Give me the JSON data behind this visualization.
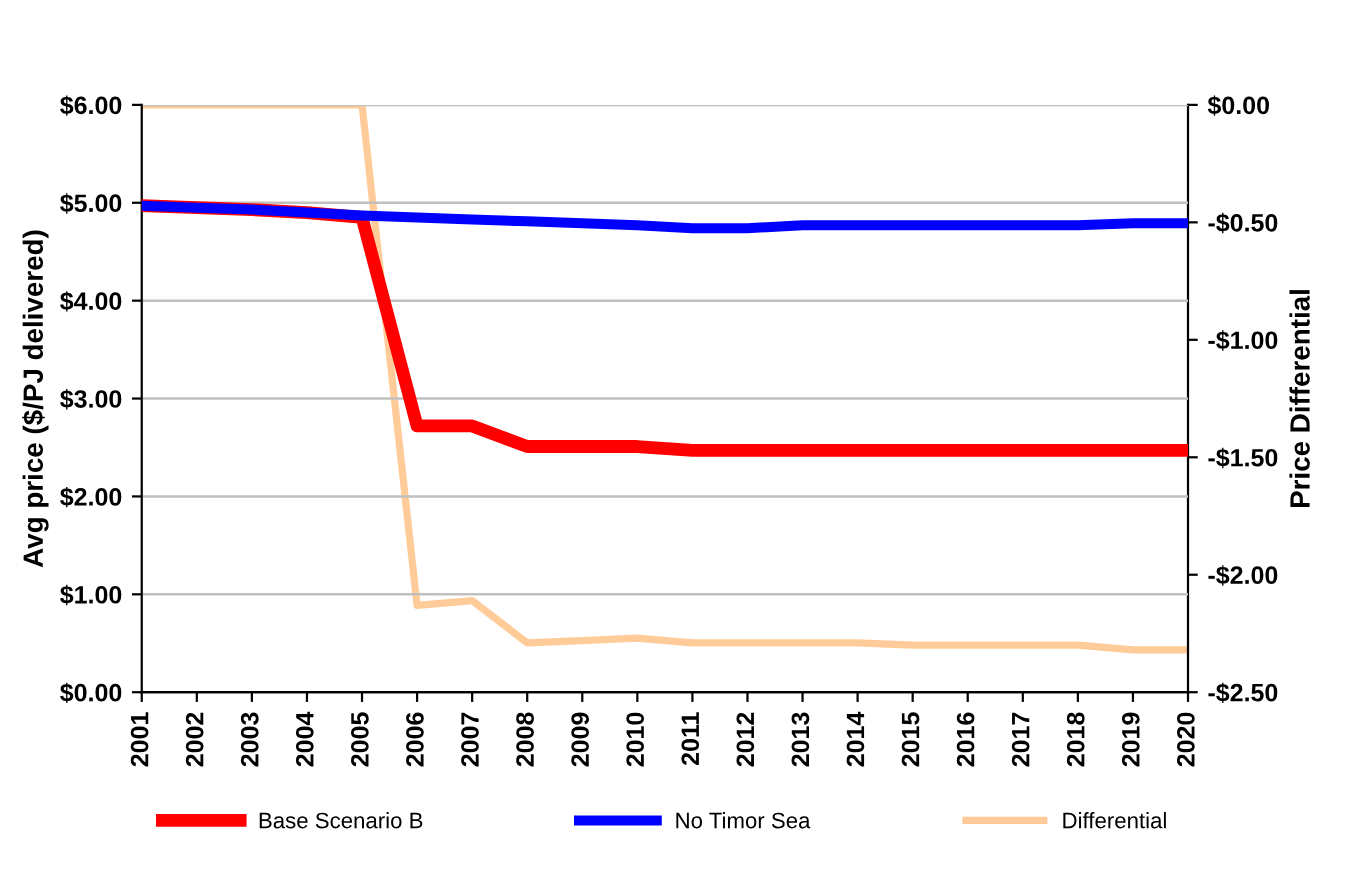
{
  "chart_data": {
    "type": "line",
    "ylabel": "Avg price ($/PJ delivered)",
    "y2label": "Price Differential",
    "categories": [
      "2001",
      "2002",
      "2003",
      "2004",
      "2005",
      "2006",
      "2007",
      "2008",
      "2009",
      "2010",
      "2011",
      "2012",
      "2013",
      "2014",
      "2015",
      "2016",
      "2017",
      "2018",
      "2019",
      "2020"
    ],
    "series": [
      {
        "name": "Base Scenario B",
        "color": "#ff0000",
        "values": [
          4.97,
          4.95,
          4.93,
          4.9,
          4.85,
          2.72,
          2.72,
          2.51,
          2.51,
          2.51,
          2.47,
          2.47,
          2.47,
          2.47,
          2.47,
          2.47,
          2.47,
          2.47,
          2.47,
          2.47
        ]
      },
      {
        "name": "No Timor Sea",
        "color": "#0000ff",
        "values": [
          4.97,
          4.95,
          4.93,
          4.9,
          4.87,
          4.85,
          4.83,
          4.81,
          4.79,
          4.77,
          4.74,
          4.74,
          4.77,
          4.77,
          4.77,
          4.77,
          4.77,
          4.77,
          4.79,
          4.79
        ]
      },
      {
        "name": "Differential",
        "color": "#ffcc99",
        "axis": "y2",
        "values": [
          0,
          0,
          0,
          0,
          0,
          -2.13,
          -2.11,
          -2.29,
          -2.28,
          -2.27,
          -2.29,
          -2.29,
          -2.29,
          -2.29,
          -2.3,
          -2.3,
          -2.3,
          -2.3,
          -2.32,
          -2.32
        ]
      }
    ],
    "ylim": [
      0,
      6
    ],
    "yticks": [
      {
        "value": 0,
        "label": "$0.00"
      },
      {
        "value": 1,
        "label": "$1.00"
      },
      {
        "value": 2,
        "label": "$2.00"
      },
      {
        "value": 3,
        "label": "$3.00"
      },
      {
        "value": 4,
        "label": "$4.00"
      },
      {
        "value": 5,
        "label": "$5.00"
      },
      {
        "value": 6,
        "label": "$6.00"
      }
    ],
    "y2lim": [
      -2.5,
      0
    ],
    "y2ticks": [
      {
        "value": -2.5,
        "label": "-$2.50"
      },
      {
        "value": -2,
        "label": "-$2.00"
      },
      {
        "value": -1.5,
        "label": "-$1.50"
      },
      {
        "value": -1,
        "label": "-$1.00"
      },
      {
        "value": -0.5,
        "label": "-$0.50"
      },
      {
        "value": 0,
        "label": "$0.00"
      }
    ],
    "grid": "y",
    "legend": "bottom",
    "marker": "none",
    "line_style": "solid"
  }
}
